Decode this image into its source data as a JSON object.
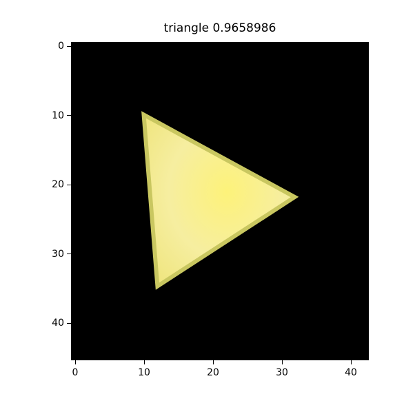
{
  "title": "triangle 0.9658986",
  "image": {
    "width": 43,
    "height": 46,
    "background": "#000000",
    "fill_color": "#f3ec8c",
    "edge_color": "#c9c760",
    "triangle": {
      "vertices": [
        [
          10,
          10
        ],
        [
          32,
          22
        ],
        [
          12,
          35
        ]
      ]
    }
  },
  "axes": {
    "x_ticks": [
      "0",
      "10",
      "20",
      "30",
      "40"
    ],
    "x_tick_values": [
      0,
      10,
      20,
      30,
      40
    ],
    "y_ticks": [
      "0",
      "10",
      "20",
      "30",
      "40"
    ],
    "y_tick_values": [
      0,
      10,
      20,
      30,
      40
    ]
  }
}
